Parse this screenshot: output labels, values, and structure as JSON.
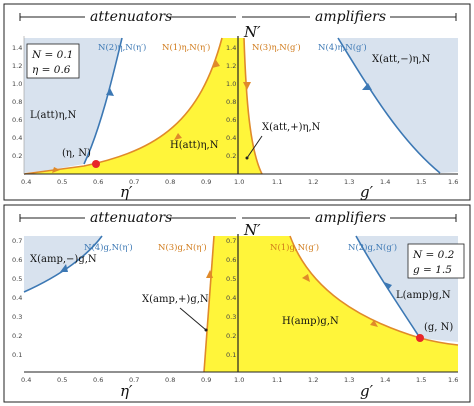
{
  "colors": {
    "blue_region": "#d8e2ee",
    "yellow_region": "#fff53a",
    "blue_curve": "#3c78b4",
    "orange_curve": "#e08a2a",
    "point": "#e8262a"
  },
  "top": {
    "header_left": "attenuators",
    "header_right": "amplifiers",
    "xlabel_left": "η′",
    "xlabel_right": "g′",
    "ylabel": "N′",
    "y_ticks": [
      "0.2",
      "0.4",
      "0.6",
      "0.8",
      "1.0",
      "1.2",
      "1.4"
    ],
    "x_ticks_left": [
      "0.4",
      "0.5",
      "0.6",
      "0.7",
      "0.8",
      "0.9",
      "1.0"
    ],
    "x_ticks_right": [
      "1.1",
      "1.2",
      "1.3",
      "1.4",
      "1.5",
      "1.6"
    ],
    "params": [
      "N = 0.1",
      "η = 0.6"
    ],
    "labels": {
      "curve_blue_left": "N(2)η,N(η′)",
      "curve_orange_left": "N(1)η,N(η′)",
      "curve_orange_right": "N(3)η,N(g′)",
      "curve_blue_right": "N(4)η,N(g′)",
      "region_blue_left": "L(att)η,N",
      "region_yellow": "H(att)η,N",
      "region_blue_right": "X(att,−)η,N",
      "region_cross": "X(att,+)η,N",
      "point": "(η, N)"
    }
  },
  "bottom": {
    "header_left": "attenuators",
    "header_right": "amplifiers",
    "xlabel_left": "η′",
    "xlabel_right": "g′",
    "ylabel": "N′",
    "y_ticks": [
      "0.1",
      "0.2",
      "0.3",
      "0.4",
      "0.5",
      "0.6",
      "0.7"
    ],
    "x_ticks_left": [
      "0.4",
      "0.5",
      "0.6",
      "0.7",
      "0.8",
      "0.9",
      "1.0"
    ],
    "x_ticks_right": [
      "1.1",
      "1.2",
      "1.3",
      "1.4",
      "1.5",
      "1.6"
    ],
    "params": [
      "N = 0.2",
      "g = 1.5"
    ],
    "labels": {
      "curve_blue_left": "N(4)g,N(η′)",
      "curve_orange_left": "N(3)g,N(η′)",
      "curve_orange_right": "N(1)g,N(g′)",
      "curve_blue_right": "N(2)g,N(g′)",
      "region_blue_left": "X(amp,−)g,N",
      "region_cross": "X(amp,+)g,N",
      "region_yellow": "H(amp)g,N",
      "region_blue_right": "L(amp)g,N",
      "point": "(g, N)"
    }
  }
}
